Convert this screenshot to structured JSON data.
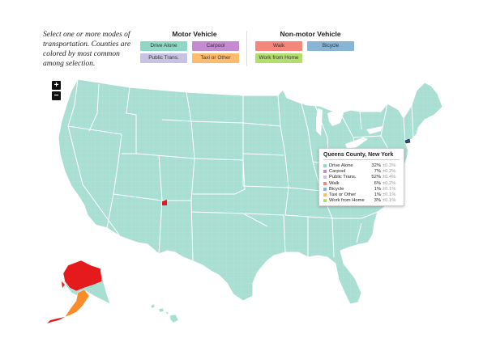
{
  "intro": {
    "line1": "Select one or more modes of",
    "line2": "transportation. Counties are",
    "line3": "colored by most common",
    "line4": "among selection."
  },
  "legend": {
    "motor": {
      "title": "Motor Vehicle",
      "items": [
        {
          "label": "Drive Alone",
          "color": "#8fd8c6"
        },
        {
          "label": "Carpool",
          "color": "#c48ad2"
        },
        {
          "label": "Public Trans.",
          "color": "#c8c3e3"
        },
        {
          "label": "Taxi or Other",
          "color": "#fdbb6e"
        }
      ]
    },
    "nonmotor": {
      "title": "Non-motor Vehicle",
      "items": [
        {
          "label": "Walk",
          "color": "#f4867a"
        },
        {
          "label": "Bicycle",
          "color": "#88b5d6"
        },
        {
          "label": "Work from Home",
          "color": "#b3dd6c"
        }
      ]
    }
  },
  "zoom": {
    "in": "+",
    "out": "−"
  },
  "map": {
    "land_color": "#a9ded3",
    "border_color": "#ffffff",
    "highlight_colors": {
      "red": "#e41a1c",
      "orange": "#fb8c2a",
      "selected": "#2a4d8f"
    }
  },
  "tooltip": {
    "title": "Queens County, New York",
    "rows": [
      {
        "label": "Drive Alone",
        "value": "32%",
        "error": "±0.3%",
        "color": "#8fd8c6"
      },
      {
        "label": "Carpool",
        "value": "7%",
        "error": "±0.2%",
        "color": "#c48ad2"
      },
      {
        "label": "Public Trans.",
        "value": "52%",
        "error": "±0.4%",
        "color": "#c8c3e3"
      },
      {
        "label": "Walk",
        "value": "6%",
        "error": "±0.2%",
        "color": "#f4867a"
      },
      {
        "label": "Bicycle",
        "value": "1%",
        "error": "±0.1%",
        "color": "#88b5d6"
      },
      {
        "label": "Taxi or Other",
        "value": "1%",
        "error": "±0.1%",
        "color": "#fdbb6e"
      },
      {
        "label": "Work from Home",
        "value": "3%",
        "error": "±0.1%",
        "color": "#b3dd6c"
      }
    ]
  }
}
